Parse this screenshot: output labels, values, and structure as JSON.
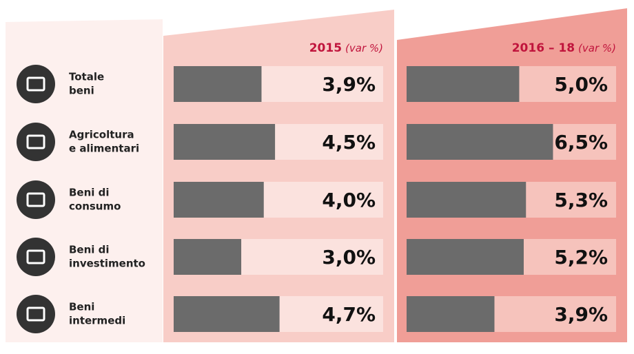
{
  "chart_data": {
    "type": "bar",
    "orientation": "horizontal",
    "categories": [
      [
        "Totale",
        "beni"
      ],
      [
        "Agricoltura",
        "e alimentari"
      ],
      [
        "Beni di",
        "consumo"
      ],
      [
        "Beni di",
        "investimento"
      ],
      [
        "Beni",
        "intermedi"
      ]
    ],
    "unit_label": "(var %)",
    "xlim": [
      0,
      9.3
    ],
    "series": [
      {
        "name": "2015",
        "color": "#6b6b6b",
        "values": [
          3.9,
          4.5,
          4.0,
          3.0,
          4.7
        ],
        "value_labels": [
          "3,9%",
          "4,5%",
          "4,0%",
          "3,0%",
          "4,7%"
        ]
      },
      {
        "name": "2016 – 18",
        "color": "#6b6b6b",
        "values": [
          5.0,
          6.5,
          5.3,
          5.2,
          3.9
        ],
        "value_labels": [
          "5,0%",
          "6,5%",
          "5,3%",
          "5,2%",
          "3,9%"
        ]
      }
    ]
  }
}
